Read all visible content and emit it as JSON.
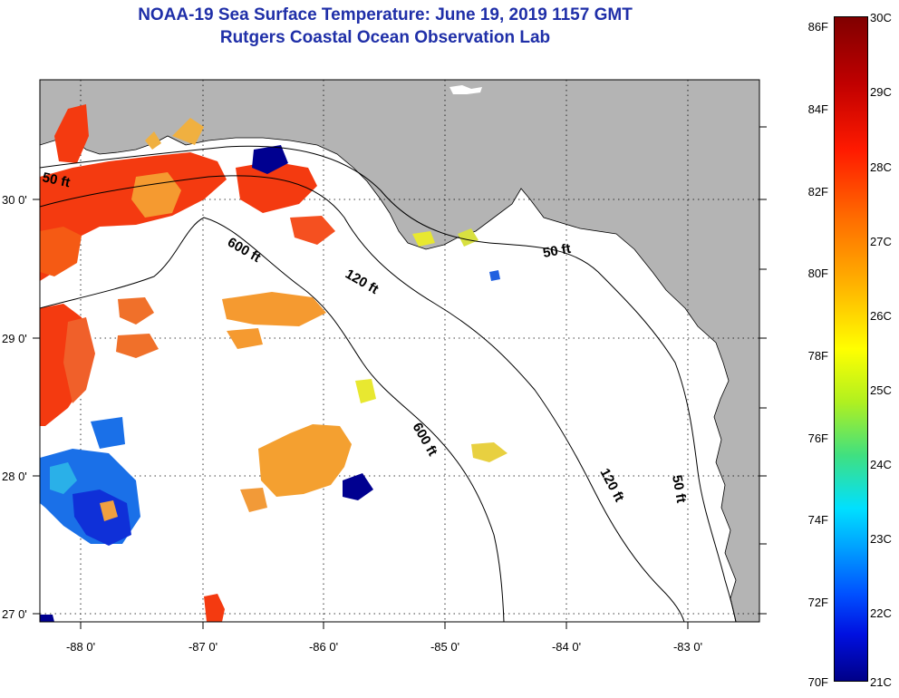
{
  "title_line1": "NOAA-19 Sea Surface Temperature:  June 19, 2019 1157 GMT",
  "title_line2": "Rutgers Coastal Ocean Observation Lab",
  "axes": {
    "lon_labels": [
      "-88 0'",
      "-87 0'",
      "-86 0'",
      "-85 0'",
      "-84 0'",
      "-83 0'"
    ],
    "lat_labels": [
      "30 0'",
      "29 0'",
      "28 0'",
      "27 0'"
    ]
  },
  "contour_labels": {
    "c50_west": "50 ft",
    "c600_upper": "600 ft",
    "c120_upper": "120 ft",
    "c50_east": "50 ft",
    "c600_lower": "600 ft",
    "c120_lower": "120 ft",
    "c50_lower": "50 ft"
  },
  "colorbar": {
    "fahrenheit": [
      "86F",
      "84F",
      "82F",
      "80F",
      "78F",
      "76F",
      "74F",
      "72F",
      "70F"
    ],
    "celsius": [
      "30C",
      "29C",
      "28C",
      "27C",
      "26C",
      "25C",
      "24C",
      "23C",
      "22C",
      "21C"
    ]
  },
  "colors": {
    "land": "#b4b4b4",
    "title": "#1f2fa8",
    "warm_red": "#f43a10",
    "orange": "#f59a30",
    "yellow": "#e8e830",
    "cold_blue": "#1030e0",
    "deep_blue": "#000090"
  }
}
